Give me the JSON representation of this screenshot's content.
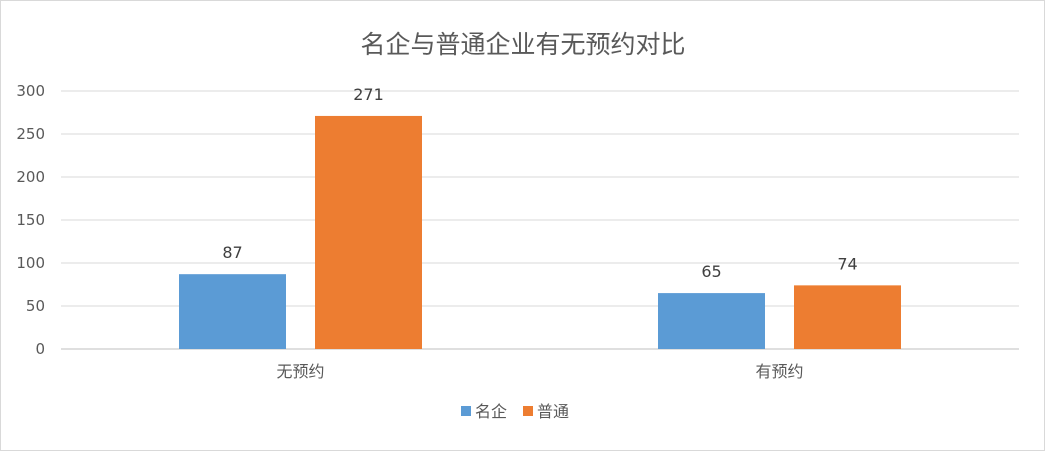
{
  "chart_data": {
    "type": "bar",
    "title": "名企与普通企业有无预约对比",
    "categories": [
      "无预约",
      "有预约"
    ],
    "series": [
      {
        "name": "名企",
        "values": [
          87,
          65
        ],
        "color": "#5b9bd5"
      },
      {
        "name": "普通",
        "values": [
          271,
          74
        ],
        "color": "#ed7d31"
      }
    ],
    "ylim": [
      0,
      300
    ],
    "yticks": [
      0,
      50,
      100,
      150,
      200,
      250,
      300
    ],
    "grid": true,
    "data_labels": true,
    "legend_position": "bottom"
  }
}
